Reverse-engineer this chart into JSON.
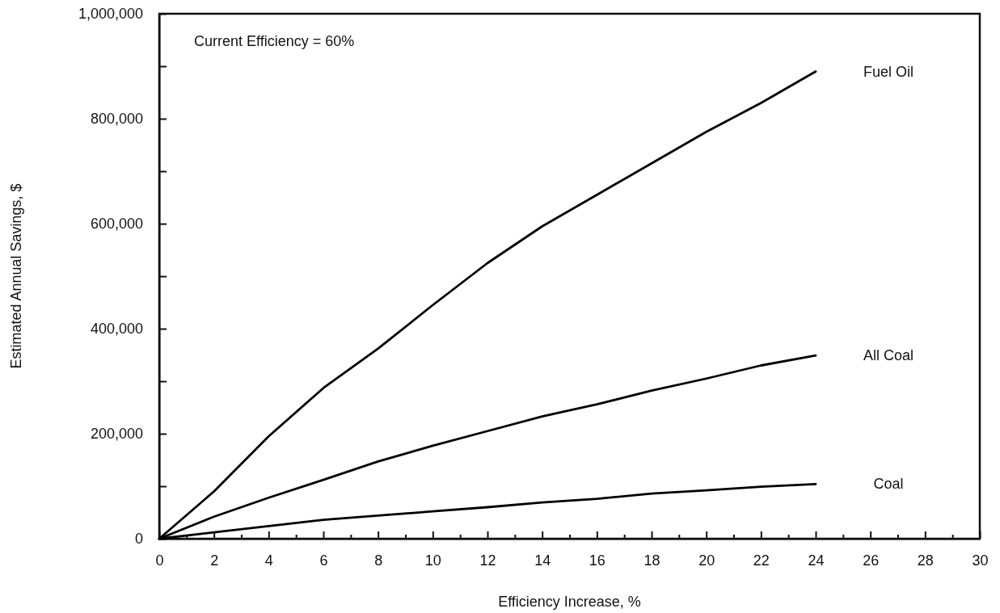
{
  "chart_data": {
    "type": "line",
    "xlabel": "Efficiency Increase, %",
    "ylabel": "Estimated Annual Savings, $",
    "annotations": [
      "Current Efficiency = 60%"
    ],
    "x": [
      0,
      2,
      4,
      6,
      8,
      10,
      12,
      14,
      16,
      18,
      20,
      22,
      24
    ],
    "series": [
      {
        "name": "Fuel Oil",
        "color": "#000000",
        "values": [
          0,
          90000,
          195000,
          287000,
          362000,
          445000,
          525000,
          595000,
          655000,
          715000,
          775000,
          830000,
          890000
        ]
      },
      {
        "name": "All Coal",
        "color": "#000000",
        "values": [
          0,
          42000,
          78000,
          112000,
          147000,
          177000,
          205000,
          233000,
          256000,
          282000,
          305000,
          330000,
          349000
        ]
      },
      {
        "name": "Coal",
        "color": "#000000",
        "values": [
          0,
          12000,
          24000,
          36000,
          44000,
          52000,
          60000,
          69000,
          76000,
          86000,
          92000,
          99000,
          104000
        ]
      }
    ],
    "xlim": [
      0,
      30
    ],
    "xticks": [
      0,
      {
        "value": 1,
        "label": null
      },
      2,
      {
        "value": 3,
        "label": null
      },
      4,
      {
        "value": 5,
        "label": null
      },
      6,
      {
        "value": 7,
        "label": null
      },
      8,
      {
        "value": 9,
        "label": null
      },
      10,
      {
        "value": 11,
        "label": null
      },
      12,
      {
        "value": 13,
        "label": null
      },
      14,
      {
        "value": 15,
        "label": null
      },
      16,
      {
        "value": 17,
        "label": null
      },
      18,
      {
        "value": 19,
        "label": null
      },
      20,
      {
        "value": 21,
        "label": null
      },
      22,
      {
        "value": 23,
        "label": null
      },
      24,
      {
        "value": 25,
        "label": null
      },
      26,
      {
        "value": 27,
        "label": null
      },
      28,
      {
        "value": 29,
        "label": null
      },
      30
    ],
    "ylim": [
      0,
      1000000
    ],
    "yticks": [
      0,
      {
        "value": 100000,
        "label": null
      },
      {
        "value": 200000,
        "label": "200,000"
      },
      {
        "value": 300000,
        "label": null
      },
      {
        "value": 400000,
        "label": "400,000"
      },
      {
        "value": 500000,
        "label": null
      },
      {
        "value": 600000,
        "label": "600,000"
      },
      {
        "value": 700000,
        "label": null
      },
      {
        "value": 800000,
        "label": "800,000"
      },
      {
        "value": 900000,
        "label": null
      },
      {
        "value": 1000000,
        "label": "1,000,000"
      }
    ],
    "grid": false,
    "legend": false,
    "marker": "none",
    "line_style": "solid"
  }
}
